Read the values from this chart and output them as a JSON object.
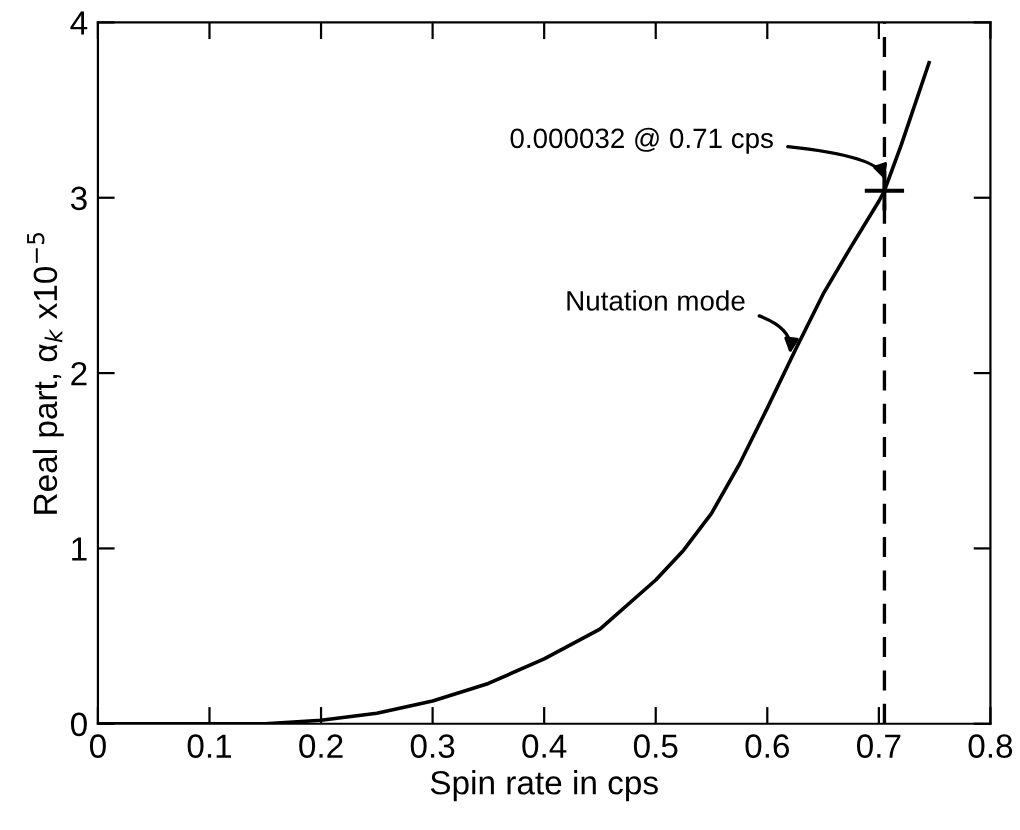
{
  "chart_data": {
    "type": "line",
    "xlabel": "Spin rate in cps",
    "ylabel": "Real part, α$_{k}$ x10$^{−5}$",
    "xlim": [
      0,
      0.8
    ],
    "ylim": [
      0,
      4
    ],
    "xticks": [
      0,
      0.1,
      0.2,
      0.3,
      0.4,
      0.5,
      0.6,
      0.7,
      {
        "value": 0.8,
        "label": "0.8"
      }
    ],
    "yticks": [
      0,
      1,
      2,
      3,
      4
    ],
    "grid": false,
    "series": [
      {
        "color": "#000000",
        "x": [
          0,
          0.1,
          0.15,
          0.2,
          0.25,
          0.3,
          0.35,
          0.4,
          0.45,
          0.5,
          0.525,
          0.55,
          0.575,
          0.6,
          0.625,
          0.65,
          0.675,
          0.7,
          0.705,
          0.72,
          0.745
        ],
        "values": [
          0,
          0,
          0,
          0.02,
          0.06,
          0.13,
          0.23,
          0.37,
          0.54,
          0.82,
          0.99,
          1.2,
          1.48,
          1.8,
          2.13,
          2.45,
          2.72,
          2.98,
          3.04,
          3.3,
          3.77
        ],
        "marker": "none",
        "line_style": "solid"
      },
      {
        "type": "scatter",
        "color": "#000000",
        "x": [
          0.705
        ],
        "values": [
          3.04
        ],
        "marker": "cross"
      }
    ],
    "ref_lines": [
      {
        "axis": "x",
        "value": 0.705,
        "color": "#000000",
        "line_style": "dashed"
      }
    ],
    "annotations": [
      {
        "text": "0.000032 @ 0.71 cps",
        "x": 0.705,
        "y": 3.04
      },
      {
        "text": "Nutation mode",
        "x": 0.618,
        "y": 2.05
      }
    ]
  }
}
